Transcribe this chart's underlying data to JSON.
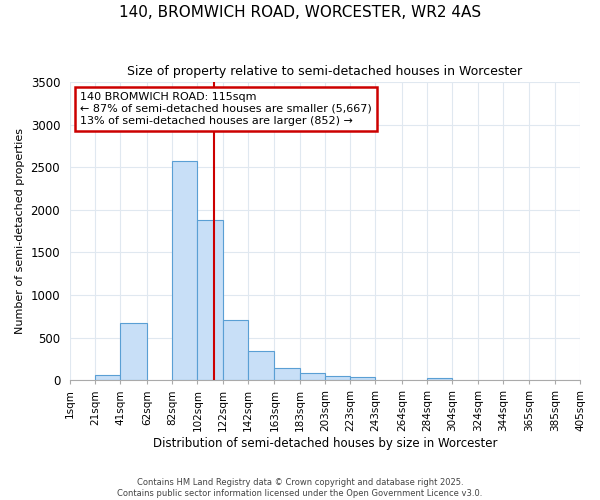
{
  "title": "140, BROMWICH ROAD, WORCESTER, WR2 4AS",
  "subtitle": "Size of property relative to semi-detached houses in Worcester",
  "xlabel": "Distribution of semi-detached houses by size in Worcester",
  "ylabel": "Number of semi-detached properties",
  "annotation_line1": "140 BROMWICH ROAD: 115sqm",
  "annotation_line2": "← 87% of semi-detached houses are smaller (5,667)",
  "annotation_line3": "13% of semi-detached houses are larger (852) →",
  "footer_line1": "Contains HM Land Registry data © Crown copyright and database right 2025.",
  "footer_line2": "Contains public sector information licensed under the Open Government Licence v3.0.",
  "bar_left_edges": [
    1,
    21,
    41,
    62,
    82,
    102,
    122,
    142,
    163,
    183,
    203,
    223,
    243,
    264,
    284,
    304,
    324,
    344,
    365,
    385
  ],
  "bar_widths": [
    20,
    20,
    21,
    20,
    20,
    20,
    20,
    21,
    20,
    20,
    20,
    20,
    21,
    20,
    20,
    20,
    20,
    21,
    20,
    20
  ],
  "bar_heights": [
    0,
    60,
    670,
    0,
    2570,
    1880,
    710,
    340,
    150,
    90,
    50,
    35,
    0,
    0,
    30,
    0,
    0,
    0,
    0,
    0
  ],
  "bar_color": "#c8dff7",
  "bar_edge_color": "#5a9fd4",
  "vline_x": 115,
  "vline_color": "#cc0000",
  "annotation_box_color": "#cc0000",
  "ylim": [
    0,
    3500
  ],
  "yticks": [
    0,
    500,
    1000,
    1500,
    2000,
    2500,
    3000,
    3500
  ],
  "xtick_labels": [
    "1sqm",
    "21sqm",
    "41sqm",
    "62sqm",
    "82sqm",
    "102sqm",
    "122sqm",
    "142sqm",
    "163sqm",
    "183sqm",
    "203sqm",
    "223sqm",
    "243sqm",
    "264sqm",
    "284sqm",
    "304sqm",
    "324sqm",
    "344sqm",
    "365sqm",
    "385sqm",
    "405sqm"
  ],
  "xtick_positions": [
    1,
    21,
    41,
    62,
    82,
    102,
    122,
    142,
    163,
    183,
    203,
    223,
    243,
    264,
    284,
    304,
    324,
    344,
    365,
    385,
    405
  ],
  "xlim": [
    1,
    405
  ],
  "background_color": "#ffffff",
  "grid_color": "#e0e8f0"
}
